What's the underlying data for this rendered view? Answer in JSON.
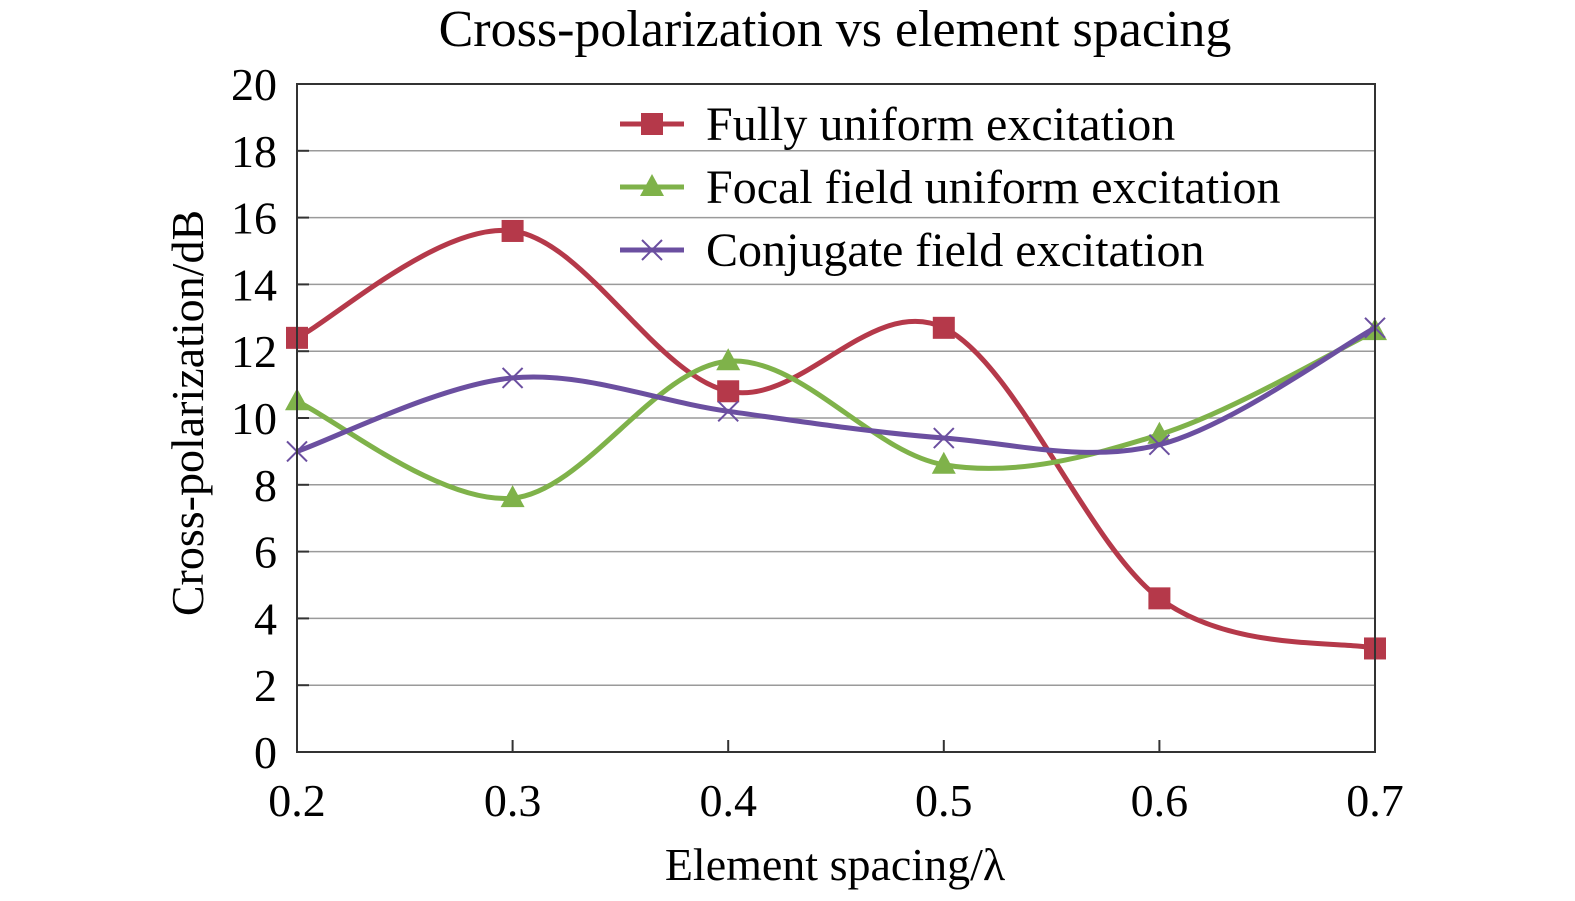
{
  "chart_data": {
    "type": "line",
    "title": "Cross-polarization vs element spacing",
    "xlabel": "Element spacing/λ",
    "ylabel": "Cross-polarization/dB",
    "xlim": [
      0.2,
      0.7
    ],
    "ylim": [
      0,
      20
    ],
    "x": [
      0.2,
      0.3,
      0.4,
      0.5,
      0.6,
      0.7
    ],
    "x_tick_labels": [
      "0.2",
      "0.3",
      "0.4",
      "0.5",
      "0.6",
      "0.7"
    ],
    "y_ticks": [
      0,
      2,
      4,
      6,
      8,
      10,
      12,
      14,
      16,
      18,
      20
    ],
    "y_tick_labels": [
      "0",
      "2",
      "4",
      "6",
      "8",
      "10",
      "12",
      "14",
      "16",
      "18",
      "20"
    ],
    "grid": "horizontal",
    "legend_position": "top-right",
    "series": [
      {
        "name": "Fully uniform excitation",
        "marker": "square",
        "color": "#b5394a",
        "values": [
          12.4,
          15.6,
          10.8,
          12.7,
          4.6,
          3.1
        ]
      },
      {
        "name": "Focal field uniform excitation",
        "marker": "triangle",
        "color": "#7fb24a",
        "values": [
          10.5,
          7.6,
          11.7,
          8.6,
          9.5,
          12.6
        ]
      },
      {
        "name": "Conjugate field excitation",
        "marker": "x",
        "color": "#6b4fa0",
        "values": [
          9.0,
          11.2,
          10.2,
          9.4,
          9.2,
          12.7
        ]
      }
    ]
  }
}
